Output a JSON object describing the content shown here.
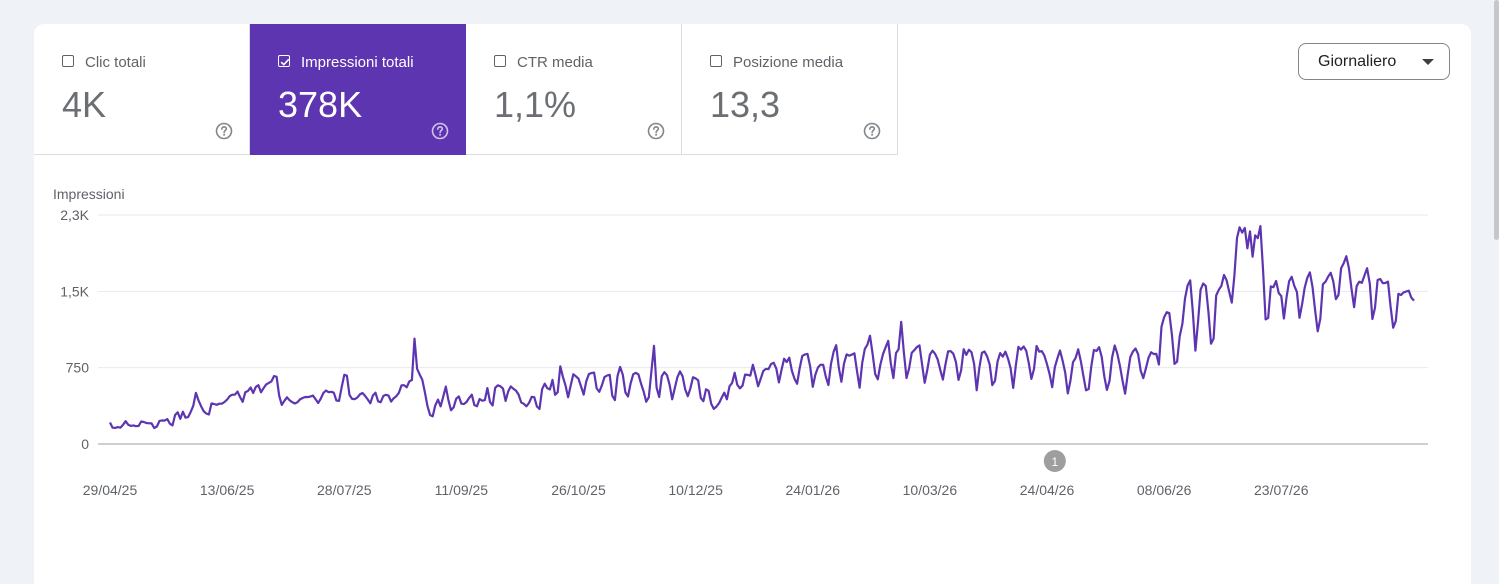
{
  "metrics": [
    {
      "label": "Clic totali",
      "value": "4K",
      "checked": false
    },
    {
      "label": "Impressioni totali",
      "value": "378K",
      "checked": true
    },
    {
      "label": "CTR media",
      "value": "1,1%",
      "checked": false
    },
    {
      "label": "Posizione media",
      "value": "13,3",
      "checked": false
    }
  ],
  "granularity": {
    "selected": "Giornaliero"
  },
  "colors": {
    "accent": "#5e35b1",
    "line": "#5e35b1",
    "annotation": "#9e9e9e"
  },
  "icons": {
    "help": "help-circle-icon",
    "dropdown": "caret-down-icon",
    "checkbox": "checkbox-icon"
  },
  "chart_data": {
    "type": "line",
    "ylabel": "Impressioni",
    "y_ticks": [
      {
        "value": 0,
        "label": "0"
      },
      {
        "value": 750,
        "label": "750"
      },
      {
        "value": 1500,
        "label": "1,5K"
      },
      {
        "value": 2250,
        "label": "2,3K"
      }
    ],
    "ylim": [
      0,
      2250
    ],
    "x_ticks": [
      "29/04/25",
      "13/06/25",
      "28/07/25",
      "11/09/25",
      "26/10/25",
      "10/12/25",
      "24/01/26",
      "10/03/26",
      "24/04/26",
      "08/06/26",
      "23/07/26"
    ],
    "x_range": [
      "29/04/25",
      "05/09/26"
    ],
    "annotation": {
      "label": "1",
      "date": "27/04/26"
    },
    "grid": true,
    "series": [
      {
        "step": "1 day",
        "values": [
          211,
          160,
          158,
          166,
          160,
          188,
          225,
          190,
          178,
          183,
          175,
          178,
          221,
          216,
          206,
          203,
          202,
          157,
          172,
          227,
          232,
          230,
          245,
          199,
          183,
          285,
          311,
          248,
          317,
          258,
          264,
          315,
          376,
          502,
          428,
          371,
          321,
          300,
          290,
          398,
          393,
          385,
          396,
          396,
          413,
          436,
          471,
          484,
          484,
          515,
          461,
          415,
          509,
          521,
          555,
          501,
          561,
          578,
          508,
          549,
          586,
          600,
          615,
          667,
          660,
          474,
          384,
          424,
          459,
          429,
          412,
          398,
          410,
          438,
          452,
          462,
          461,
          467,
          476,
          439,
          403,
          446,
          502,
          526,
          509,
          513,
          504,
          427,
          423,
          554,
          680,
          671,
          481,
          443,
          440,
          456,
          487,
          501,
          473,
          438,
          400,
          477,
          504,
          420,
          411,
          472,
          483,
          476,
          417,
          450,
          470,
          503,
          576,
          578,
          557,
          615,
          630,
          1036,
          739,
          682,
          631,
          507,
          371,
          284,
          272,
          380,
          436,
          369,
          464,
          564,
          431,
          332,
          360,
          445,
          468,
          396,
          393,
          414,
          453,
          484,
          382,
          371,
          442,
          425,
          430,
          549,
          413,
          378,
          552,
          577,
          567,
          544,
          423,
          517,
          566,
          542,
          525,
          485,
          409,
          395,
          370,
          403,
          463,
          460,
          368,
          344,
          538,
          592,
          548,
          535,
          630,
          483,
          509,
          763,
          660,
          576,
          459,
          576,
          686,
          665,
          642,
          564,
          485,
          617,
          688,
          697,
          702,
          545,
          513,
          577,
          657,
          673,
          680,
          475,
          431,
          666,
          758,
          681,
          507,
          467,
          594,
          685,
          699,
          685,
          594,
          517,
          416,
          459,
          713,
          964,
          553,
          462,
          667,
          705,
          676,
          582,
          439,
          549,
          656,
          713,
          665,
          536,
          470,
          547,
          656,
          645,
          625,
          452,
          421,
          537,
          523,
          396,
          345,
          368,
          402,
          456,
          504,
          439,
          567,
          599,
          700,
          582,
          547,
          573,
          682,
          679,
          672,
          778,
          679,
          568,
          641,
          717,
          739,
          736,
          786,
          798,
          741,
          605,
          727,
          837,
          806,
          848,
          718,
          642,
          591,
          746,
          866,
          880,
          885,
          760,
          562,
          683,
          753,
          779,
          777,
          661,
          580,
          788,
          906,
          971,
          751,
          611,
          790,
          880,
          868,
          878,
          891,
          717,
          553,
          795,
          934,
          976,
          1064,
          886,
          687,
          636,
          781,
          882,
          950,
          1013,
          792,
          648,
          893,
          931,
          1201,
          896,
          648,
          742,
          895,
          923,
          952,
          969,
          780,
          601,
          728,
          878,
          917,
          886,
          830,
          727,
          633,
          784,
          911,
          912,
          887,
          807,
          630,
          722,
          931,
          875,
          926,
          902,
          787,
          528,
          747,
          895,
          909,
          862,
          780,
          579,
          621,
          813,
          893,
          859,
          907,
          839,
          745,
          551,
          768,
          954,
          928,
          958,
          917,
          794,
          640,
          737,
          963,
          907,
          913,
          868,
          784,
          686,
          558,
          754,
          842,
          919,
          819,
          702,
          497,
          620,
          804,
          845,
          930,
          815,
          669,
          528,
          540,
          764,
          924,
          914,
          951,
          856,
          665,
          532,
          618,
          850,
          968,
          888,
          769,
          623,
          494,
          682,
          854,
          908,
          938,
          883,
          720,
          647,
          744,
          846,
          901,
          884,
          885,
          781,
          1153,
          1245,
          1295,
          1286,
          1076,
          787,
          810,
          1058,
          1182,
          1430,
          1557,
          1607,
          1303,
          917,
          1196,
          1516,
          1577,
          1552,
          1302,
          985,
          1036,
          1460,
          1515,
          1554,
          1660,
          1608,
          1496,
          1389,
          1656,
          2024,
          2129,
          2077,
          2122,
          1923,
          2089,
          1840,
          2051,
          2022,
          2141,
          1719,
          1224,
          1239,
          1548,
          1541,
          1602,
          1484,
          1453,
          1233,
          1438,
          1599,
          1643,
          1554,
          1494,
          1240,
          1374,
          1537,
          1633,
          1686,
          1545,
          1316,
          1107,
          1229,
          1569,
          1595,
          1644,
          1682,
          1597,
          1423,
          1465,
          1727,
          1776,
          1845,
          1729,
          1525,
          1344,
          1553,
          1595,
          1584,
          1657,
          1727,
          1575,
          1228,
          1339,
          1611,
          1621,
          1580,
          1582,
          1596,
          1347,
          1143,
          1209,
          1476,
          1464,
          1490,
          1498,
          1506,
          1436,
          1409
        ]
      }
    ]
  }
}
